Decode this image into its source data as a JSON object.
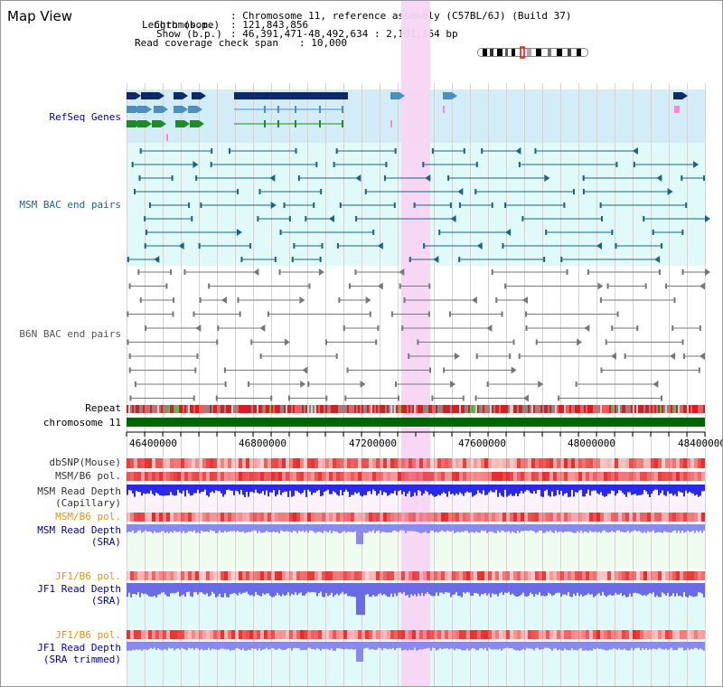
{
  "title": "Map View",
  "info": {
    "chromosome_label": "Chromosome",
    "chromosome_value": "Chromosome 11, reference assembly (C57BL/6J) (Build 37)",
    "length_label": "Length (b.p.)",
    "length_value": "121,843,856",
    "show_label": "Show (b.p.)",
    "show_value": "46,391,471-48,492,634 : 2,101,164 bp",
    "coverage_label": "Read coverage check span",
    "coverage_value": "10,000"
  },
  "tracks": {
    "refseq": "RefSeq Genes",
    "msm_bac": "MSM BAC end pairs",
    "b6n_bac": "B6N BAC end pairs",
    "repeat": "Repeat",
    "chromosome": "chromosome 11",
    "dbsnp": "dbSNP(Mouse)",
    "msm_b6_pol": "MSM/B6 pol.",
    "msm_depth_cap_1": "MSM Read Depth",
    "msm_depth_cap_2": "(Capillary)",
    "msm_b6_pol_2": "MSM/B6 pol.",
    "msm_depth_sra_1": "MSM Read Depth",
    "msm_depth_sra_2": "(SRA)",
    "jf1_b6_pol": "JF1/B6 pol.",
    "jf1_depth_sra_1": "JF1 Read Depth",
    "jf1_depth_sra_2": "(SRA)",
    "jf1_b6_pol_2": "JF1/B6 pol.",
    "jf1_depth_trim_1": "JF1 Read Depth",
    "jf1_depth_trim_2": "(SRA trimmed)"
  },
  "axis_ticks": [
    "46400000",
    "46800000",
    "47200000",
    "47600000",
    "48000000",
    "48400000"
  ],
  "colors": {
    "refseq_bg": "#d2edf8",
    "bac_bg": "#e0f9f9",
    "highlight": "#f7d6f3",
    "chromosome": "#006600",
    "label_blue": "#0000aa",
    "label_orange": "#e69500",
    "label_teal": "#226677"
  }
}
